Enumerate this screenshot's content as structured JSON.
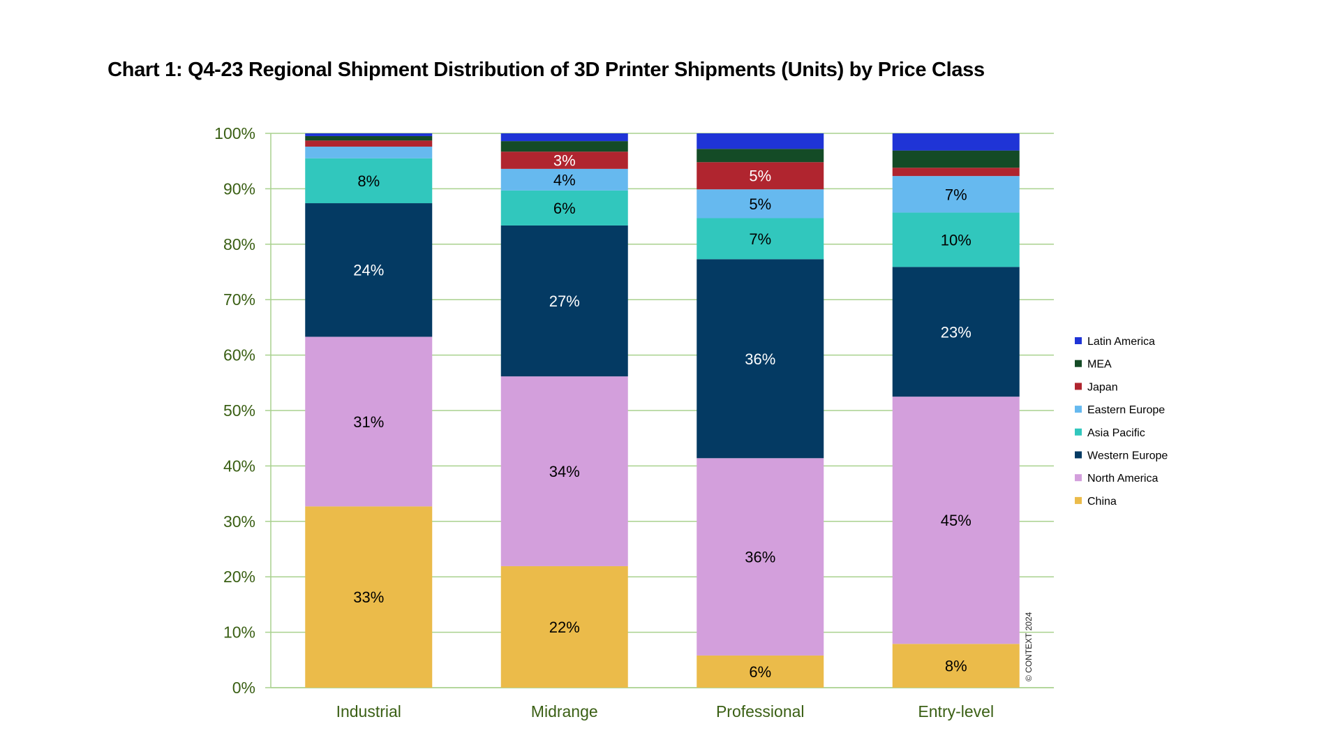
{
  "chart_data": {
    "type": "bar",
    "stacked": true,
    "normalized": true,
    "title": "Chart 1: Q4-23 Regional Shipment Distribution of 3D Printer Shipments (Units) by Price Class",
    "categories": [
      "Industrial",
      "Midrange",
      "Professional",
      "Entry-level"
    ],
    "ylim": [
      0,
      100
    ],
    "yticks": [
      "0%",
      "10%",
      "20%",
      "30%",
      "40%",
      "50%",
      "60%",
      "70%",
      "80%",
      "90%",
      "100%"
    ],
    "grid": true,
    "legend_position": "right",
    "series": [
      {
        "name": "China",
        "color": "#EBBB4A",
        "label_color": "#000000",
        "values": [
          32.7,
          21.9,
          5.8,
          7.9
        ],
        "labels": [
          "33%",
          "22%",
          "6%",
          "8%"
        ]
      },
      {
        "name": "North America",
        "color": "#D39FDC",
        "label_color": "#000000",
        "values": [
          30.6,
          34.2,
          35.6,
          44.6
        ],
        "labels": [
          "31%",
          "34%",
          "36%",
          "45%"
        ]
      },
      {
        "name": "Western Europe",
        "color": "#043A63",
        "label_color": "#ffffff",
        "values": [
          24.1,
          27.2,
          35.9,
          23.4
        ],
        "labels": [
          "24%",
          "27%",
          "36%",
          "23%"
        ]
      },
      {
        "name": "Asia Pacific",
        "color": "#31C7BD",
        "label_color": "#000000",
        "values": [
          8.1,
          6.3,
          7.4,
          9.8
        ],
        "labels": [
          "8%",
          "6%",
          "7%",
          "10%"
        ]
      },
      {
        "name": "Eastern Europe",
        "color": "#66B9EF",
        "label_color": "#000000",
        "values": [
          2.1,
          3.9,
          5.2,
          6.6
        ],
        "labels": [
          "",
          "4%",
          "5%",
          "7%"
        ]
      },
      {
        "name": "Japan",
        "color": "#B0252F",
        "label_color": "#ffffff",
        "values": [
          1.1,
          3.1,
          4.9,
          1.5
        ],
        "labels": [
          "",
          "3%",
          "5%",
          ""
        ]
      },
      {
        "name": "MEA",
        "color": "#144B26",
        "label_color": "#ffffff",
        "values": [
          0.8,
          1.9,
          2.4,
          3.1
        ],
        "labels": [
          "",
          "",
          "",
          ""
        ]
      },
      {
        "name": "Latin America",
        "color": "#1F34D6",
        "label_color": "#ffffff",
        "values": [
          0.5,
          1.4,
          2.8,
          3.1
        ],
        "labels": [
          "",
          "",
          "",
          ""
        ]
      }
    ],
    "legend_order": [
      "Latin America",
      "MEA",
      "Japan",
      "Eastern Europe",
      "Asia Pacific",
      "Western Europe",
      "North America",
      "China"
    ],
    "copyright": "© CONTEXT 2024",
    "gridline_color": "#A9D18E",
    "tick_color": "#3a5f14"
  }
}
